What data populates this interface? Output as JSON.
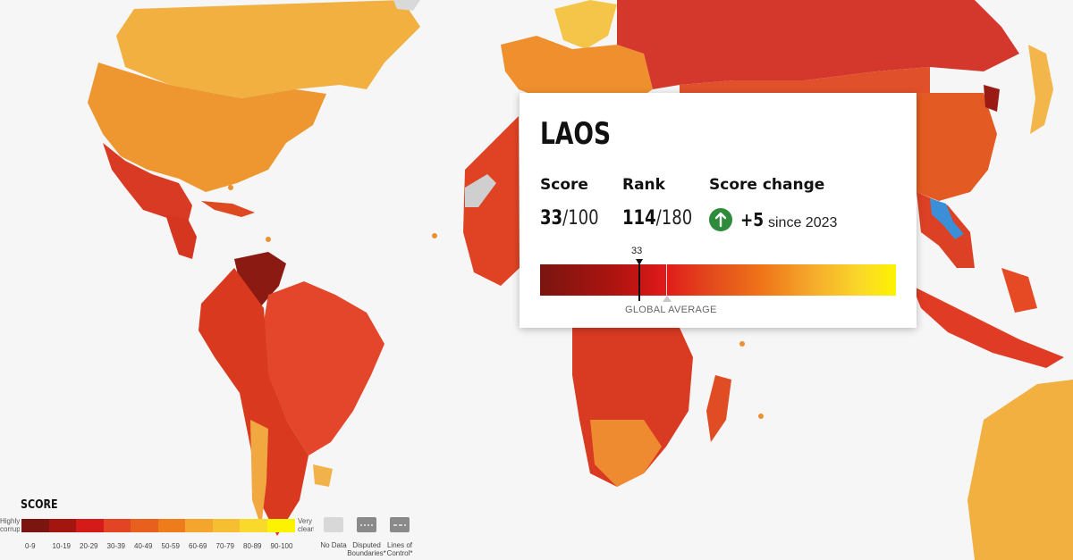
{
  "tooltip": {
    "country": "LAOS",
    "score_label": "Score",
    "score_value": "33",
    "score_max": "/100",
    "rank_label": "Rank",
    "rank_value": "114",
    "rank_max": "/180",
    "change_label": "Score change",
    "change_value": "+5",
    "change_since": "since 2023",
    "change_direction": "up",
    "marker_value": "33",
    "global_average_label": "GLOBAL AVERAGE"
  },
  "legend": {
    "title": "SCORE",
    "left_end": "Highly corrupt",
    "right_end": "Very clean",
    "bins": [
      {
        "label": "0-9",
        "color": "#7a1510"
      },
      {
        "label": "10-19",
        "color": "#a3150f"
      },
      {
        "label": "20-29",
        "color": "#d51a1a"
      },
      {
        "label": "30-39",
        "color": "#e34524"
      },
      {
        "label": "40-49",
        "color": "#e8601e"
      },
      {
        "label": "50-59",
        "color": "#ef7c1a"
      },
      {
        "label": "60-69",
        "color": "#f3a52d"
      },
      {
        "label": "70-79",
        "color": "#f6be31"
      },
      {
        "label": "80-89",
        "color": "#f8d92c"
      },
      {
        "label": "90-100",
        "color": "#fdf200"
      }
    ],
    "extras": [
      {
        "label": "No Data"
      },
      {
        "label": "Disputed Boundaries*"
      },
      {
        "label": "Lines of Control*"
      }
    ]
  },
  "colors": {
    "highlight": "#3b8fd6",
    "no_data": "#d3d3d3",
    "positive_change": "#2e8b3a"
  }
}
